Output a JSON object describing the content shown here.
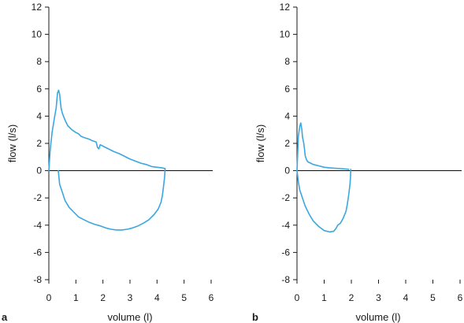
{
  "chart_data": [
    {
      "type": "line",
      "panel_label": "a",
      "xlabel": "volume (l)",
      "ylabel": "flow (l/s)",
      "xlim": [
        0,
        6
      ],
      "ylim": [
        -8,
        12
      ],
      "xticks": [
        0,
        1,
        2,
        3,
        4,
        5,
        6
      ],
      "yticks": [
        12,
        10,
        8,
        6,
        4,
        2,
        0,
        -2,
        -4,
        -6,
        -8
      ],
      "reference_line": 0,
      "color": "#3aa7e0",
      "series": [
        {
          "part": "expiratory",
          "x": [
            0.0,
            0.05,
            0.12,
            0.2,
            0.27,
            0.32,
            0.36,
            0.4,
            0.45,
            0.5,
            0.6,
            0.7,
            0.85,
            1.0,
            1.1,
            1.2,
            1.35,
            1.5,
            1.6,
            1.75,
            1.8,
            1.85,
            1.9,
            2.0,
            2.2,
            2.4,
            2.6,
            2.8,
            3.0,
            3.2,
            3.4,
            3.6,
            3.8,
            4.0,
            4.2,
            4.3
          ],
          "y": [
            0.0,
            1.5,
            2.8,
            3.8,
            4.6,
            5.7,
            5.9,
            5.6,
            4.6,
            4.2,
            3.7,
            3.3,
            3.0,
            2.8,
            2.7,
            2.5,
            2.4,
            2.3,
            2.2,
            2.1,
            1.7,
            1.6,
            1.9,
            1.8,
            1.6,
            1.4,
            1.25,
            1.05,
            0.85,
            0.7,
            0.55,
            0.45,
            0.3,
            0.25,
            0.2,
            0.15
          ]
        },
        {
          "part": "inspiratory",
          "x": [
            0.35,
            0.4,
            0.5,
            0.6,
            0.75,
            0.9,
            1.1,
            1.3,
            1.5,
            1.7,
            1.9,
            2.1,
            2.3,
            2.5,
            2.7,
            2.9,
            3.1,
            3.3,
            3.5,
            3.7,
            3.9,
            4.05,
            4.15,
            4.2,
            4.25,
            4.28,
            4.3
          ],
          "y": [
            0.0,
            -1.0,
            -1.6,
            -2.2,
            -2.7,
            -3.0,
            -3.4,
            -3.6,
            -3.8,
            -3.95,
            -4.05,
            -4.2,
            -4.3,
            -4.35,
            -4.35,
            -4.3,
            -4.2,
            -4.05,
            -3.85,
            -3.6,
            -3.2,
            -2.8,
            -2.3,
            -1.8,
            -1.0,
            -0.5,
            0.15
          ]
        }
      ]
    },
    {
      "type": "line",
      "panel_label": "b",
      "xlabel": "volume (l)",
      "ylabel": "flow (l/s)",
      "xlim": [
        0,
        6
      ],
      "ylim": [
        -8,
        12
      ],
      "xticks": [
        0,
        1,
        2,
        3,
        4,
        5,
        6
      ],
      "yticks": [
        12,
        10,
        8,
        6,
        4,
        2,
        0,
        -2,
        -4,
        -6,
        -8
      ],
      "reference_line": 0,
      "color": "#3aa7e0",
      "series": [
        {
          "part": "expiratory",
          "x": [
            0.0,
            0.05,
            0.1,
            0.14,
            0.18,
            0.2,
            0.22,
            0.25,
            0.28,
            0.3,
            0.35,
            0.4,
            0.5,
            0.6,
            0.8,
            1.0,
            1.2,
            1.4,
            1.6,
            1.8,
            1.9
          ],
          "y": [
            0.0,
            2.5,
            3.2,
            3.5,
            3.0,
            2.5,
            2.3,
            2.0,
            1.5,
            1.1,
            0.8,
            0.65,
            0.55,
            0.45,
            0.35,
            0.25,
            0.2,
            0.18,
            0.15,
            0.12,
            0.1
          ]
        },
        {
          "part": "inspiratory",
          "x": [
            0.0,
            0.05,
            0.1,
            0.2,
            0.3,
            0.45,
            0.6,
            0.8,
            1.0,
            1.2,
            1.35,
            1.45,
            1.5,
            1.6,
            1.7,
            1.8,
            1.85,
            1.9,
            1.95,
            1.97,
            1.98
          ],
          "y": [
            0.0,
            -0.8,
            -1.4,
            -2.0,
            -2.6,
            -3.2,
            -3.7,
            -4.1,
            -4.4,
            -4.5,
            -4.45,
            -4.2,
            -4.0,
            -3.85,
            -3.5,
            -3.0,
            -2.5,
            -1.8,
            -1.0,
            -0.4,
            0.1
          ]
        }
      ]
    }
  ]
}
